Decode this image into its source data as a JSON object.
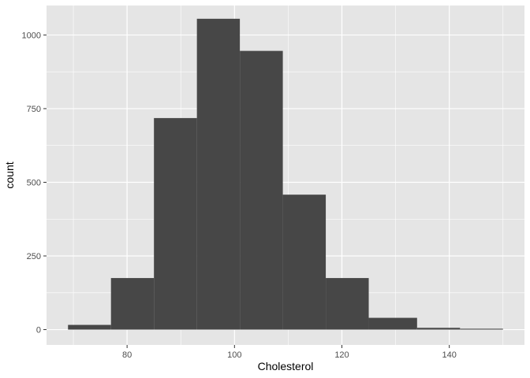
{
  "chart_data": {
    "type": "bar",
    "subtype": "histogram",
    "title": "",
    "xlabel": "Cholesterol",
    "ylabel": "count",
    "xlim": [
      65,
      154
    ],
    "ylim": [
      -52,
      1100
    ],
    "x_ticks": [
      80,
      100,
      120,
      140
    ],
    "y_ticks": [
      0,
      250,
      500,
      750,
      1000
    ],
    "grid": true,
    "legend": "none",
    "bins": [
      {
        "x0": 69,
        "x1": 77,
        "count": 16
      },
      {
        "x0": 77,
        "x1": 85,
        "count": 175
      },
      {
        "x0": 85,
        "x1": 93,
        "count": 718
      },
      {
        "x0": 93,
        "x1": 101,
        "count": 1055
      },
      {
        "x0": 101,
        "x1": 109,
        "count": 946
      },
      {
        "x0": 109,
        "x1": 117,
        "count": 458
      },
      {
        "x0": 117,
        "x1": 125,
        "count": 175
      },
      {
        "x0": 125,
        "x1": 134,
        "count": 40
      },
      {
        "x0": 134,
        "x1": 142,
        "count": 6
      },
      {
        "x0": 142,
        "x1": 150,
        "count": 3
      }
    ]
  },
  "colors": {
    "panel_background": "#e5e5e5",
    "major_grid": "#ffffff",
    "bar_fill": "#474747",
    "tick_text": "#4d4d4d",
    "axis_text": "#000000"
  }
}
